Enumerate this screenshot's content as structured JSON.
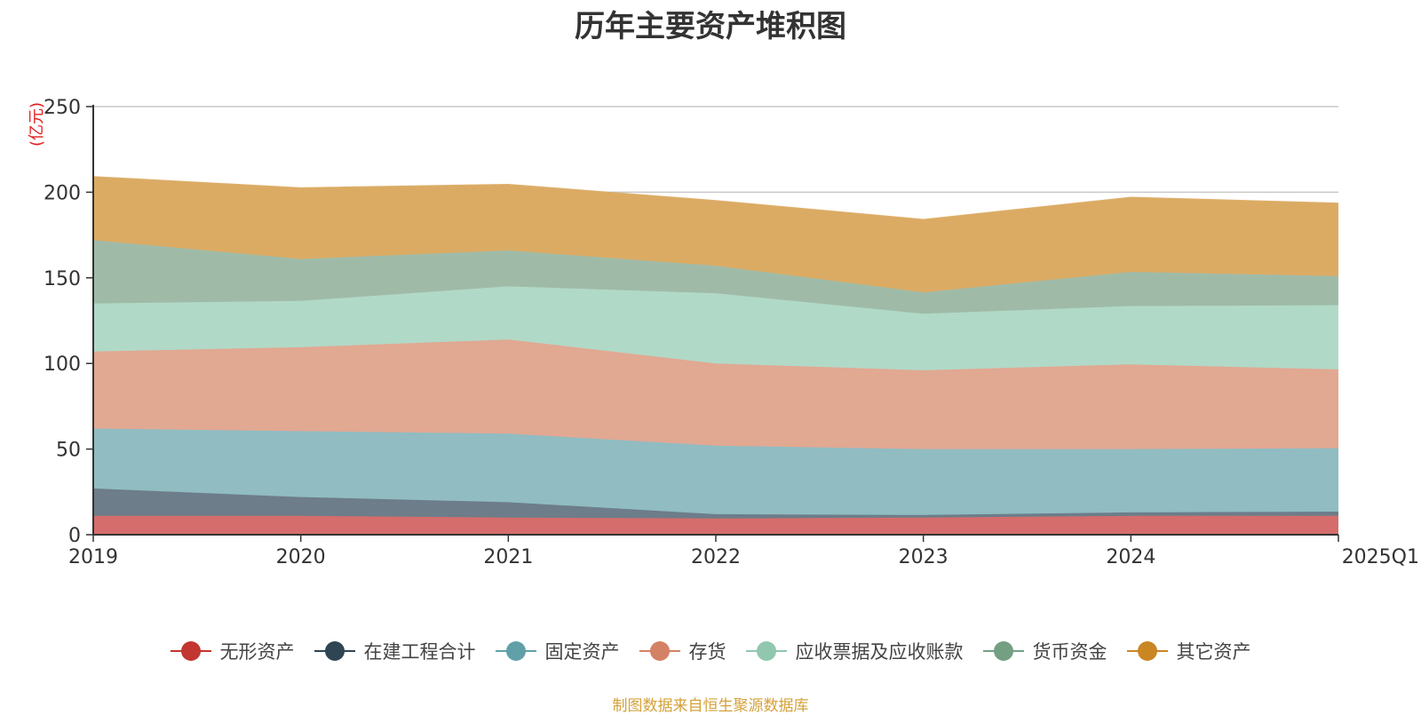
{
  "chart_data": {
    "type": "area",
    "stacked": true,
    "title": "历年主要资产堆积图",
    "unit_label": "(亿元)",
    "x": [
      "2019",
      "2020",
      "2021",
      "2022",
      "2023",
      "2024",
      "2025Q1"
    ],
    "ylim": [
      0,
      250
    ],
    "yticks": [
      "0",
      "50",
      "100",
      "150",
      "200",
      "250"
    ],
    "grid": true,
    "legend_position": "bottom",
    "series": [
      {
        "name": "无形资产",
        "color": "#c23531",
        "fill": "#d46d6b",
        "values": [
          11,
          11,
          10,
          9.5,
          10,
          11,
          11
        ]
      },
      {
        "name": "在建工程合计",
        "color": "#2f4554",
        "fill": "#6d7d89",
        "values": [
          16,
          11,
          9,
          2.5,
          1.5,
          2,
          2.5
        ]
      },
      {
        "name": "固定资产",
        "color": "#61a0a8",
        "fill": "#90bcc2",
        "values": [
          35,
          38.5,
          40,
          40,
          38.5,
          37,
          37
        ]
      },
      {
        "name": "存货",
        "color": "#d48265",
        "fill": "#e1a892",
        "values": [
          45,
          49,
          55,
          48,
          46,
          49.5,
          46
        ]
      },
      {
        "name": "应收票据及应收账款",
        "color": "#91c7ae",
        "fill": "#b1d9c7",
        "values": [
          28,
          27,
          31,
          41,
          33,
          34,
          37.5
        ]
      },
      {
        "name": "货币资金",
        "color": "#749f83",
        "fill": "#9fbba8",
        "values": [
          37,
          24.5,
          21,
          16,
          12.5,
          20,
          17
        ]
      },
      {
        "name": "其它资产",
        "color": "#ca8622",
        "fill": "#dbab64",
        "values": [
          37,
          41.5,
          38.5,
          38,
          42.5,
          43.5,
          42.5
        ]
      }
    ]
  },
  "source_note": "制图数据来自恒生聚源数据库"
}
